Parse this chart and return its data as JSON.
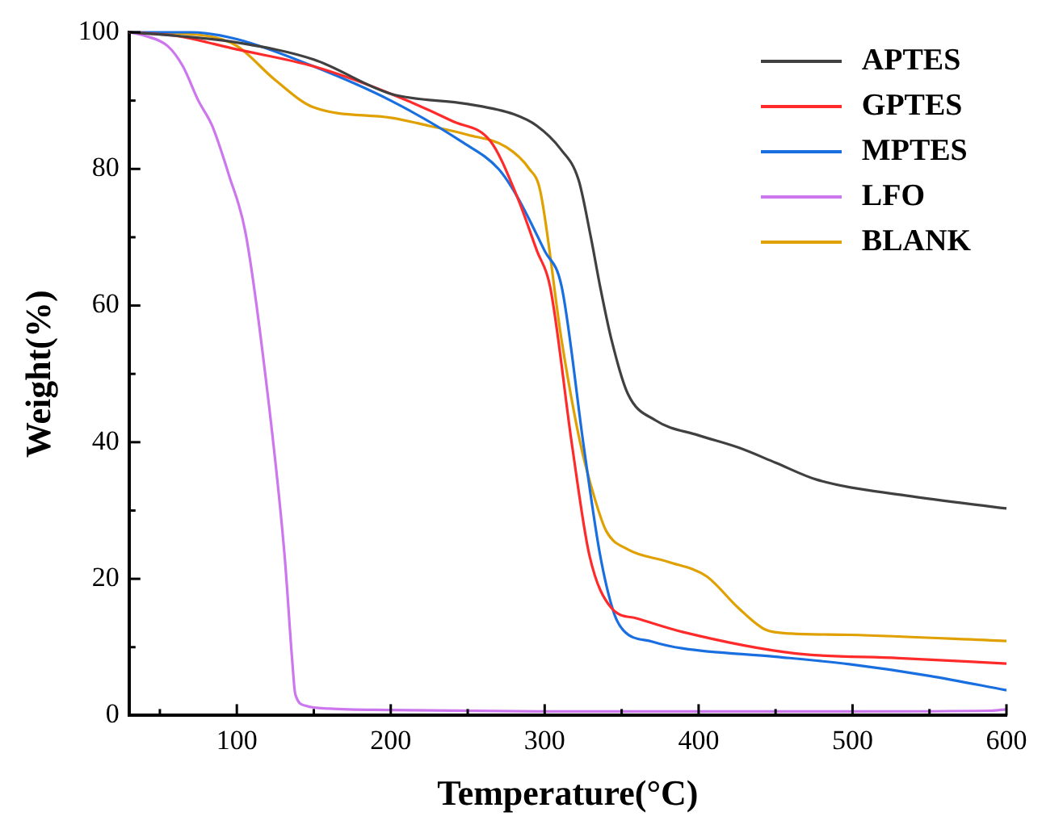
{
  "chart_data": {
    "type": "line",
    "xlabel": "Temperature(°C)",
    "ylabel": "Weight(%)",
    "xlim": [
      30,
      600
    ],
    "ylim": [
      0,
      100
    ],
    "xticks": [
      {
        "value": 50,
        "label": null
      },
      100,
      {
        "value": 150,
        "label": null
      },
      200,
      {
        "value": 250,
        "label": null
      },
      300,
      {
        "value": 350,
        "label": null
      },
      400,
      {
        "value": 450,
        "label": null
      },
      500,
      {
        "value": 550,
        "label": null
      },
      600
    ],
    "yticks": [
      0,
      {
        "value": 10,
        "label": null
      },
      20,
      {
        "value": 30,
        "label": null
      },
      40,
      {
        "value": 50,
        "label": null
      },
      60,
      {
        "value": 70,
        "label": null
      },
      80,
      {
        "value": 90,
        "label": null
      },
      100
    ],
    "grid": false,
    "legend": "top right",
    "marker": "none",
    "line_style": "solid",
    "series": [
      {
        "name": "APTES",
        "color": "#404040",
        "x": [
          30,
          60,
          100,
          150,
          200,
          250,
          280,
          295,
          310,
          322,
          330,
          336,
          343.5,
          354,
          372,
          400,
          426,
          450,
          477,
          534.5,
          600
        ],
        "values": [
          100,
          99.5,
          98.5,
          96,
          91,
          89.5,
          88,
          86.3,
          83,
          78.4,
          70,
          62.8,
          54.9,
          47.1,
          43.2,
          41,
          39.2,
          37,
          34.5,
          32.2,
          30.3
        ]
      },
      {
        "name": "GPTES",
        "color": "#ff2a2a",
        "x": [
          30,
          60,
          100,
          150,
          200,
          240,
          265,
          282,
          295,
          303.5,
          318,
          329,
          343.5,
          360,
          390,
          462,
          530,
          600
        ],
        "values": [
          100,
          99.5,
          97.5,
          95,
          91,
          87,
          84,
          76,
          68,
          62.8,
          39.2,
          23.5,
          15.7,
          14.2,
          12.2,
          9.1,
          8.4,
          7.6
        ]
      },
      {
        "name": "MPTES",
        "color": "#1a6fe0",
        "x": [
          30,
          70,
          100,
          150,
          200,
          246,
          270,
          282,
          300,
          311,
          325.5,
          336,
          345,
          351,
          370,
          390,
          450,
          498,
          550,
          600
        ],
        "values": [
          100,
          100,
          99,
          95,
          90,
          84,
          80,
          76,
          68,
          62.8,
          39.2,
          23.5,
          15,
          12.5,
          10.8,
          9.8,
          8.6,
          7.5,
          5.8,
          3.7
        ]
      },
      {
        "name": "LFO",
        "color": "#cc77ee",
        "x": [
          30,
          40,
          55,
          65,
          75,
          84,
          95,
          105.7,
          120,
          131,
          136,
          138,
          145,
          160,
          200,
          300,
          500,
          590,
          600
        ],
        "values": [
          100,
          99.5,
          98,
          95,
          90,
          86.3,
          79,
          70.6,
          47.1,
          23.5,
          8,
          3.1,
          1.4,
          1,
          0.8,
          0.6,
          0.6,
          0.7,
          0.9
        ]
      },
      {
        "name": "BLANK",
        "color": "#e0a000",
        "x": [
          30,
          80,
          100,
          125,
          150,
          200,
          225,
          250,
          275,
          290,
          297,
          311,
          323,
          333,
          340,
          354,
          380,
          405,
          426,
          444,
          460,
          498,
          600
        ],
        "values": [
          100,
          99.5,
          98,
          93,
          89,
          87.5,
          86.3,
          85,
          83.2,
          80,
          76.9,
          54.9,
          40,
          31.4,
          27,
          24.3,
          22.5,
          20.4,
          15.7,
          12.5,
          12,
          11.8,
          10.9
        ]
      }
    ]
  }
}
